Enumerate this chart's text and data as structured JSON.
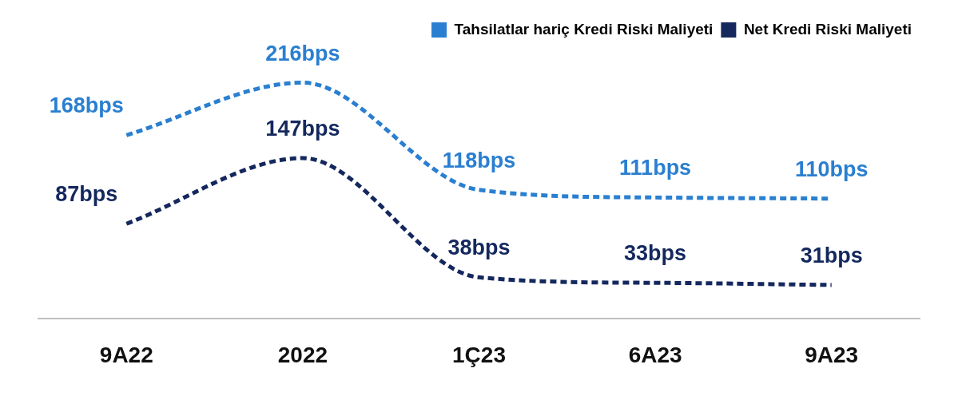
{
  "chart_data": {
    "type": "line",
    "categories": [
      "9A22",
      "2022",
      "1Ç23",
      "6A23",
      "9A23"
    ],
    "series": [
      {
        "name": "Tahsilatlar hariç Kredi Riski Maliyeti",
        "color": "#2a7fd0",
        "values": [
          168,
          216,
          118,
          111,
          110
        ],
        "value_labels": [
          "168bps",
          "216bps",
          "118bps",
          "111bps",
          "110bps"
        ]
      },
      {
        "name": "Net Kredi Riski Maliyeti",
        "color": "#14285e",
        "values": [
          87,
          147,
          38,
          33,
          31
        ],
        "value_labels": [
          "87bps",
          "147bps",
          "38bps",
          "33bps",
          "31bps"
        ]
      }
    ],
    "line_style": "dashed",
    "marker": "none",
    "legend": "top right",
    "grid": false
  }
}
